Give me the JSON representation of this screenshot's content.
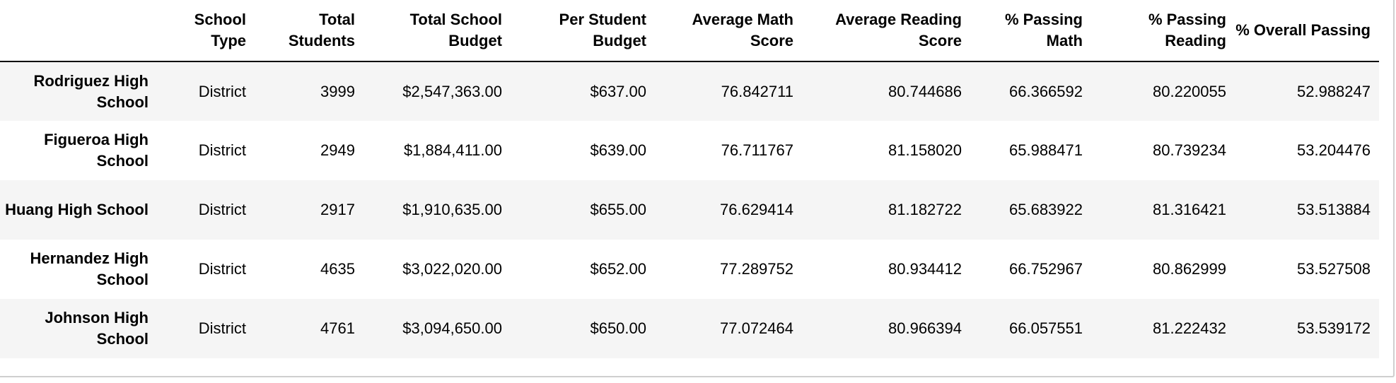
{
  "table": {
    "index_header": "",
    "columns": [
      "School Type",
      "Total Students",
      "Total School Budget",
      "Per Student Budget",
      "Average Math Score",
      "Average Reading Score",
      "% Passing Math",
      "% Passing Reading",
      "% Overall Passing"
    ],
    "rows": [
      {
        "index": "Rodriguez High School",
        "cells": [
          "District",
          "3999",
          "$2,547,363.00",
          "$637.00",
          "76.842711",
          "80.744686",
          "66.366592",
          "80.220055",
          "52.988247"
        ]
      },
      {
        "index": "Figueroa High School",
        "cells": [
          "District",
          "2949",
          "$1,884,411.00",
          "$639.00",
          "76.711767",
          "81.158020",
          "65.988471",
          "80.739234",
          "53.204476"
        ]
      },
      {
        "index": "Huang High School",
        "cells": [
          "District",
          "2917",
          "$1,910,635.00",
          "$655.00",
          "76.629414",
          "81.182722",
          "65.683922",
          "81.316421",
          "53.513884"
        ]
      },
      {
        "index": "Hernandez High School",
        "cells": [
          "District",
          "4635",
          "$3,022,020.00",
          "$652.00",
          "77.289752",
          "80.934412",
          "66.752967",
          "80.862999",
          "53.527508"
        ]
      },
      {
        "index": "Johnson High School",
        "cells": [
          "District",
          "4761",
          "$3,094,650.00",
          "$650.00",
          "77.072464",
          "80.966394",
          "66.057551",
          "81.222432",
          "53.539172"
        ]
      }
    ]
  }
}
